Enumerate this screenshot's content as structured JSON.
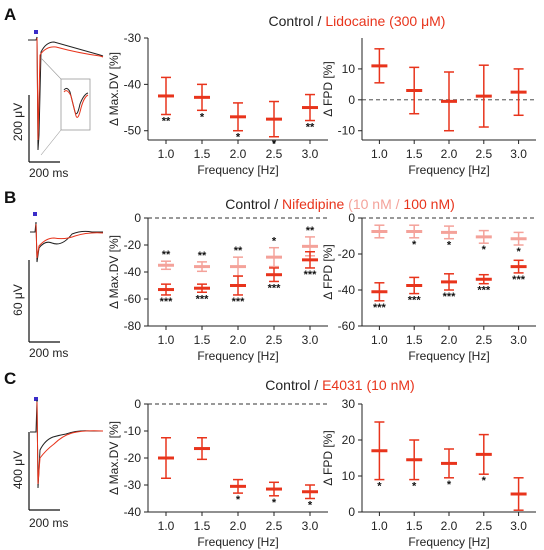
{
  "colors": {
    "red": "#e8341c",
    "pink": "#f4a29a",
    "black": "#222222",
    "blue": "#3a2cc8",
    "gray": "#9a9a9a"
  },
  "panels": [
    {
      "letter": "A",
      "title": {
        "control": "Control",
        "sep": " / ",
        "drug": "Lidocaine (300 μM)",
        "drug_low": "",
        "mid": "",
        "drug_high": "",
        "close": ""
      },
      "trace": {
        "volt_label": "200 μV",
        "time_label": "200 ms",
        "has_inset": true
      }
    },
    {
      "letter": "B",
      "title": {
        "control": "Control",
        "sep": " / ",
        "drug": "Nifedipine ",
        "drug_low": "(10 nM",
        "mid": " / ",
        "drug_high": "100 nM)",
        "close": ""
      },
      "trace": {
        "volt_label": "60 μV",
        "time_label": "200 ms",
        "has_inset": false
      }
    },
    {
      "letter": "C",
      "title": {
        "control": "Control",
        "sep": " / ",
        "drug": "E4031 (10 nM)",
        "drug_low": "",
        "mid": "",
        "drug_high": "",
        "close": ""
      },
      "trace": {
        "volt_label": "400 μV",
        "time_label": "200 ms",
        "has_inset": false
      }
    }
  ],
  "chart_data": [
    {
      "id": "A-maxdv",
      "type": "scatter",
      "xlabel": "Frequency [Hz]",
      "ylabel": "Δ Max.DV [%]",
      "categories": [
        "1.0",
        "1.5",
        "2.0",
        "2.5",
        "3.0"
      ],
      "ylim": [
        -52,
        -30
      ],
      "yticks": [
        -50,
        -40,
        -30
      ],
      "zero_line": false,
      "series": [
        {
          "color_key": "red",
          "mean": [
            -42.5,
            -42.8,
            -47,
            -47.5,
            -45
          ],
          "err": [
            4,
            2.8,
            3,
            3.8,
            2.8
          ],
          "sig": [
            "**",
            "*",
            "*",
            "*",
            "**"
          ],
          "sig_pos": "below"
        }
      ]
    },
    {
      "id": "A-fpd",
      "type": "scatter",
      "xlabel": "Frequency [Hz]",
      "ylabel": "Δ FPD [%]",
      "categories": [
        "1.0",
        "1.5",
        "2.0",
        "2.5",
        "3.0"
      ],
      "ylim": [
        -13,
        20
      ],
      "yticks": [
        -10,
        0,
        10
      ],
      "zero_line": true,
      "series": [
        {
          "color_key": "red",
          "mean": [
            11,
            3,
            -0.5,
            1.2,
            2.5
          ],
          "err": [
            5.5,
            7.5,
            9.5,
            10,
            7.5
          ],
          "sig": [
            "",
            "",
            "",
            "",
            ""
          ],
          "sig_pos": "below"
        }
      ]
    },
    {
      "id": "B-maxdv",
      "type": "scatter",
      "xlabel": "Frequency [Hz]",
      "ylabel": "Δ Max.DV [%]",
      "categories": [
        "1.0",
        "1.5",
        "2.0",
        "2.5",
        "3.0"
      ],
      "ylim": [
        -80,
        0
      ],
      "yticks": [
        -80,
        -60,
        -40,
        -20,
        0
      ],
      "zero_line": true,
      "series": [
        {
          "color_key": "pink",
          "mean": [
            -35,
            -36,
            -36,
            -29,
            -21
          ],
          "err": [
            3,
            3.5,
            7,
            7,
            7
          ],
          "sig": [
            "**",
            "**",
            "**",
            "*",
            "**"
          ],
          "sig_pos": "above"
        },
        {
          "color_key": "red",
          "mean": [
            -53,
            -52,
            -50,
            -42,
            -31
          ],
          "err": [
            4,
            3,
            7,
            5,
            6
          ],
          "sig": [
            "***",
            "***",
            "***",
            "***",
            "***"
          ],
          "sig_pos": "below"
        }
      ]
    },
    {
      "id": "B-fpd",
      "type": "scatter",
      "xlabel": "Frequency [Hz]",
      "ylabel": "Δ FPD [%]",
      "categories": [
        "1.0",
        "1.5",
        "2.0",
        "2.5",
        "3.0"
      ],
      "ylim": [
        -60,
        0
      ],
      "yticks": [
        -60,
        -40,
        -20,
        0
      ],
      "zero_line": true,
      "series": [
        {
          "color_key": "pink",
          "mean": [
            -7.5,
            -7.5,
            -8,
            -10.5,
            -11.5
          ],
          "err": [
            3.5,
            3.5,
            3.5,
            3.5,
            3.5
          ],
          "sig": [
            "",
            "*",
            "*",
            "*",
            "*"
          ],
          "sig_pos": "below"
        },
        {
          "color_key": "red",
          "mean": [
            -41,
            -37.5,
            -35.5,
            -34,
            -27
          ],
          "err": [
            5,
            4.5,
            4.5,
            2.5,
            3.5
          ],
          "sig": [
            "***",
            "***",
            "***",
            "***",
            "***"
          ],
          "sig_pos": "below"
        }
      ]
    },
    {
      "id": "C-maxdv",
      "type": "scatter",
      "xlabel": "Frequency [Hz]",
      "ylabel": "Δ Max.DV [%]",
      "categories": [
        "1.0",
        "1.5",
        "2.0",
        "2.5",
        "3.0"
      ],
      "ylim": [
        -40,
        0
      ],
      "yticks": [
        -40,
        -30,
        -20,
        -10,
        0
      ],
      "zero_line": true,
      "series": [
        {
          "color_key": "red",
          "mean": [
            -20,
            -16.5,
            -30.5,
            -31.5,
            -32.5
          ],
          "err": [
            7.5,
            4,
            2.5,
            2.5,
            2.5
          ],
          "sig": [
            "",
            "",
            "*",
            "*",
            "*"
          ],
          "sig_pos": "below"
        }
      ]
    },
    {
      "id": "C-fpd",
      "type": "scatter",
      "xlabel": "Frequency [Hz]",
      "ylabel": "Δ FPD [%]",
      "categories": [
        "1.0",
        "1.5",
        "2.0",
        "2.5",
        "3.0"
      ],
      "ylim": [
        0,
        30
      ],
      "yticks": [
        0,
        10,
        20,
        30
      ],
      "zero_line": false,
      "series": [
        {
          "color_key": "red",
          "mean": [
            17,
            14.5,
            13.5,
            16,
            5
          ],
          "err": [
            8,
            5.5,
            4,
            5.5,
            4.5
          ],
          "sig": [
            "*",
            "*",
            "*",
            "*",
            ""
          ],
          "sig_pos": "below"
        }
      ]
    }
  ]
}
